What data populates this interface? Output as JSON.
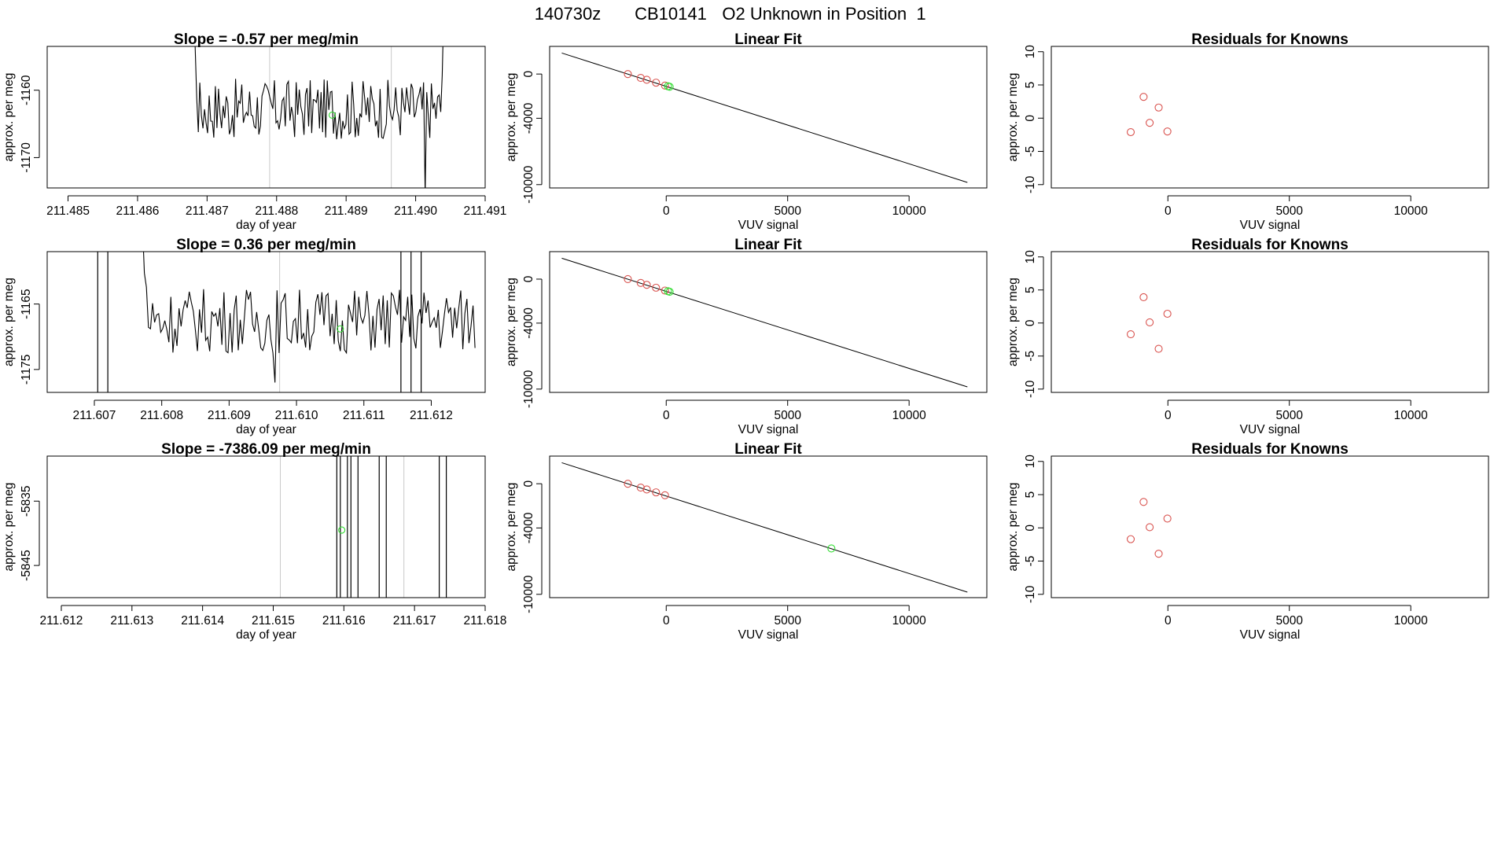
{
  "header": {
    "date": "140730z",
    "cylinder": "CB10141",
    "description": "O2 Unknown in Position  1"
  },
  "colors": {
    "line": "#000000",
    "known_point": "#d9534f",
    "unknown_point": "#33dd33",
    "marker_line": "#c8c8c8",
    "box": "#000000"
  },
  "chart_data": [
    {
      "type": "line",
      "title": "Slope =  -0.57  per meg/min",
      "xlabel": "day of year",
      "ylabel": "approx. per meg",
      "xticks": [
        "211.485",
        "211.486",
        "211.487",
        "211.488",
        "211.489",
        "211.490",
        "211.491"
      ],
      "xtick_values": [
        211.485,
        211.486,
        211.487,
        211.488,
        211.489,
        211.49,
        211.491
      ],
      "yticks": [
        "-1160",
        "-1170"
      ],
      "ytick_values": [
        -1160,
        -1170
      ],
      "xlim": [
        211.4847,
        211.491
      ],
      "ylim": [
        -1174.5,
        -1153.5
      ],
      "gray_vlines": [
        211.4879,
        211.48965
      ],
      "unknown_point": {
        "x": 211.4888,
        "y": -1163.7
      },
      "trace_range": [
        211.48665,
        211.49045
      ],
      "trace_mean": -1162.8,
      "trace_amp": 4.5
    },
    {
      "type": "scatter",
      "title": "Linear Fit",
      "xlabel": "VUV signal",
      "ylabel": "approx. per meg",
      "xticks": [
        "0",
        "5000",
        "10000"
      ],
      "xtick_values": [
        0,
        5000,
        10000
      ],
      "yticks": [
        "0",
        "-4000",
        "-10000"
      ],
      "ytick_values": [
        0,
        -4000,
        -10000
      ],
      "xlim": [
        -4800,
        13200
      ],
      "ylim": [
        -10300,
        2500
      ],
      "fit_line": {
        "x": [
          -4300,
          12400
        ],
        "y": [
          1900,
          -9800
        ]
      },
      "known_points": {
        "x": [
          -1580,
          -1050,
          -800,
          -420,
          -50
        ],
        "y": [
          0,
          -350,
          -520,
          -780,
          -1040
        ]
      },
      "unknown_points": {
        "x": [
          70,
          140
        ],
        "y": [
          -1100,
          -1150
        ]
      }
    },
    {
      "type": "scatter",
      "title": "Residuals for Knowns",
      "xlabel": "VUV signal",
      "ylabel": "approx. per meg",
      "xticks": [
        "0",
        "5000",
        "10000"
      ],
      "xtick_values": [
        0,
        5000,
        10000
      ],
      "yticks": [
        "10",
        "5",
        "0",
        "-5",
        "-10"
      ],
      "ytick_values": [
        10,
        5,
        0,
        -5,
        -10
      ],
      "xlim": [
        -4800,
        13200
      ],
      "ylim": [
        -10.5,
        10.8
      ],
      "points": {
        "x": [
          -1530,
          -1000,
          -750,
          -380,
          -20
        ],
        "y": [
          -2.1,
          3.2,
          -0.7,
          1.6,
          -2.0
        ]
      }
    },
    {
      "type": "line",
      "title": "Slope =  0.36  per meg/min",
      "xlabel": "day of year",
      "ylabel": "approx. per meg",
      "xticks": [
        "211.607",
        "211.608",
        "211.609",
        "211.610",
        "211.611",
        "211.612"
      ],
      "xtick_values": [
        211.607,
        211.608,
        211.609,
        211.61,
        211.611,
        211.612
      ],
      "yticks": [
        "-1165",
        "-1175"
      ],
      "ytick_values": [
        -1165,
        -1175
      ],
      "xlim": [
        211.6063,
        211.6128
      ],
      "ylim": [
        -1178.5,
        -1157
      ],
      "gray_vlines": [
        211.60975,
        211.61155
      ],
      "black_vlines": [
        211.60705,
        211.6072,
        211.61155,
        211.6117,
        211.61185
      ],
      "unknown_point": {
        "x": 211.61065,
        "y": -1168.8
      },
      "trace_range": [
        211.6075,
        211.61265
      ],
      "trace_mean": -1167.5,
      "trace_amp": 5.0
    },
    {
      "type": "scatter",
      "title": "Linear Fit",
      "xlabel": "VUV signal",
      "ylabel": "approx. per meg",
      "xticks": [
        "0",
        "5000",
        "10000"
      ],
      "xtick_values": [
        0,
        5000,
        10000
      ],
      "yticks": [
        "0",
        "-4000",
        "-10000"
      ],
      "ytick_values": [
        0,
        -4000,
        -10000
      ],
      "xlim": [
        -4800,
        13200
      ],
      "ylim": [
        -10300,
        2500
      ],
      "fit_line": {
        "x": [
          -4300,
          12400
        ],
        "y": [
          1900,
          -9800
        ]
      },
      "known_points": {
        "x": [
          -1580,
          -1050,
          -800,
          -420,
          -50
        ],
        "y": [
          0,
          -350,
          -520,
          -780,
          -1040
        ]
      },
      "unknown_points": {
        "x": [
          70,
          140
        ],
        "y": [
          -1100,
          -1150
        ]
      }
    },
    {
      "type": "scatter",
      "title": "Residuals for Knowns",
      "xlabel": "VUV signal",
      "ylabel": "approx. per meg",
      "xticks": [
        "0",
        "5000",
        "10000"
      ],
      "xtick_values": [
        0,
        5000,
        10000
      ],
      "yticks": [
        "10",
        "5",
        "0",
        "-5",
        "-10"
      ],
      "ytick_values": [
        10,
        5,
        0,
        -5,
        -10
      ],
      "xlim": [
        -4800,
        13200
      ],
      "ylim": [
        -10.5,
        10.8
      ],
      "points": {
        "x": [
          -1530,
          -1000,
          -750,
          -380,
          -20
        ],
        "y": [
          -1.7,
          3.9,
          0.1,
          -3.9,
          1.4
        ]
      }
    },
    {
      "type": "line",
      "title": "Slope =  -7386.09  per meg/min",
      "xlabel": "day of year",
      "ylabel": "approx. per meg",
      "xticks": [
        "211.612",
        "211.613",
        "211.614",
        "211.615",
        "211.616",
        "211.617",
        "211.618"
      ],
      "xtick_values": [
        211.612,
        211.613,
        211.614,
        211.615,
        211.616,
        211.617,
        211.618
      ],
      "yticks": [
        "-5835",
        "-5845"
      ],
      "ytick_values": [
        -5835,
        -5845
      ],
      "xlim": [
        211.6118,
        211.618
      ],
      "ylim": [
        -5850,
        -5828
      ],
      "gray_vlines": [
        211.6151,
        211.61685
      ],
      "black_vlines": [
        211.6159,
        211.61595,
        211.61605,
        211.6161,
        211.6162,
        211.6165,
        211.6166,
        211.61735,
        211.61745
      ],
      "unknown_point": {
        "x": 211.61597,
        "y": -5839.5
      }
    },
    {
      "type": "scatter",
      "title": "Linear Fit",
      "xlabel": "VUV signal",
      "ylabel": "approx. per meg",
      "xticks": [
        "0",
        "5000",
        "10000"
      ],
      "xtick_values": [
        0,
        5000,
        10000
      ],
      "yticks": [
        "0",
        "-4000",
        "-10000"
      ],
      "ytick_values": [
        0,
        -4000,
        -10000
      ],
      "xlim": [
        -4800,
        13200
      ],
      "ylim": [
        -10300,
        2500
      ],
      "fit_line": {
        "x": [
          -4300,
          12400
        ],
        "y": [
          1900,
          -9800
        ]
      },
      "known_points": {
        "x": [
          -1580,
          -1050,
          -800,
          -420,
          -50
        ],
        "y": [
          0,
          -350,
          -520,
          -780,
          -1040
        ]
      },
      "unknown_points": {
        "x": [
          6800
        ],
        "y": [
          -5850
        ]
      }
    },
    {
      "type": "scatter",
      "title": "Residuals for Knowns",
      "xlabel": "VUV signal",
      "ylabel": "approx. per meg",
      "xticks": [
        "0",
        "5000",
        "10000"
      ],
      "xtick_values": [
        0,
        5000,
        10000
      ],
      "yticks": [
        "10",
        "5",
        "0",
        "-5",
        "-10"
      ],
      "ytick_values": [
        10,
        5,
        0,
        -5,
        -10
      ],
      "xlim": [
        -4800,
        13200
      ],
      "ylim": [
        -10.5,
        10.8
      ],
      "points": {
        "x": [
          -1530,
          -1000,
          -750,
          -380,
          -20
        ],
        "y": [
          -1.7,
          3.9,
          0.1,
          -3.9,
          1.4
        ]
      }
    }
  ]
}
